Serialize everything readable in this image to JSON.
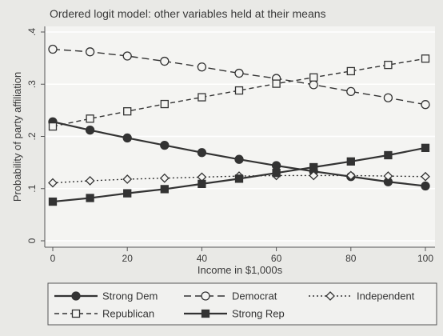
{
  "chart_data": {
    "type": "line",
    "title": "Ordered logit model: other variables held at their means",
    "xlabel": "Income in $1,000s",
    "ylabel": "Probability of party affiliation",
    "xlim": [
      0,
      100
    ],
    "ylim": [
      0,
      0.4
    ],
    "x": [
      0,
      10,
      20,
      30,
      40,
      50,
      60,
      70,
      80,
      90,
      100
    ],
    "xticks": [
      "0",
      "20",
      "40",
      "60",
      "80",
      "100"
    ],
    "yticks": [
      "0",
      ".1",
      ".2",
      ".3",
      ".4"
    ],
    "grid": true,
    "legend_position": "bottom",
    "series": [
      {
        "name": "Strong Dem",
        "marker": "filled-circle",
        "dash": "solid",
        "values": [
          0.228,
          0.212,
          0.197,
          0.183,
          0.169,
          0.156,
          0.144,
          0.133,
          0.123,
          0.113,
          0.105
        ]
      },
      {
        "name": "Democrat",
        "marker": "hollow-circle",
        "dash": "long-dash",
        "values": [
          0.367,
          0.362,
          0.354,
          0.344,
          0.333,
          0.321,
          0.311,
          0.299,
          0.286,
          0.274,
          0.261
        ]
      },
      {
        "name": "Independent",
        "marker": "hollow-diamond",
        "dash": "dotted",
        "values": [
          0.111,
          0.115,
          0.118,
          0.12,
          0.122,
          0.124,
          0.125,
          0.125,
          0.125,
          0.124,
          0.123
        ]
      },
      {
        "name": "Republican",
        "marker": "hollow-square",
        "dash": "dash",
        "values": [
          0.219,
          0.234,
          0.248,
          0.262,
          0.275,
          0.288,
          0.301,
          0.313,
          0.325,
          0.337,
          0.349
        ]
      },
      {
        "name": "Strong Rep",
        "marker": "filled-square",
        "dash": "solid",
        "values": [
          0.075,
          0.082,
          0.091,
          0.099,
          0.109,
          0.119,
          0.13,
          0.141,
          0.152,
          0.164,
          0.178
        ]
      }
    ],
    "colors": {
      "background": "#e9e9e6",
      "plot_background": "#f4f4f2",
      "grid": "#ffffff",
      "lines": "#333333"
    }
  }
}
